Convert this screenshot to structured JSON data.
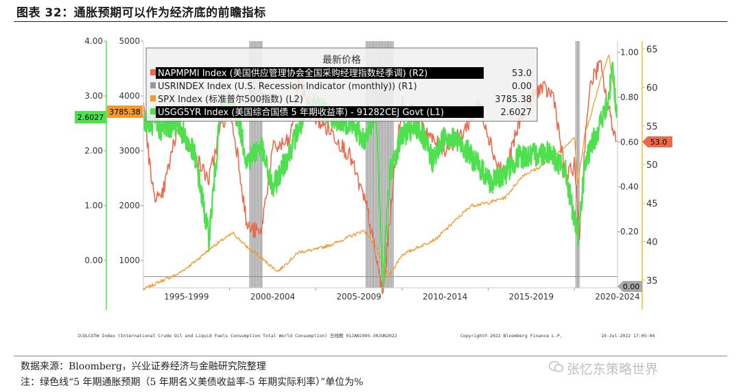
{
  "title": "图表 32：通胀预期可以作为经济底的前瞻指标",
  "legend": {
    "header": "最新价格",
    "items": [
      {
        "label": "NAPMPMI Index (美国供应管理协会全国采购经理指数经季调) (R2)",
        "value": "53.0",
        "color": "#ec6a4c",
        "highlight": true
      },
      {
        "label": "USRINDEX Index (U.S. Recession Indicator (monthly)) (R1)",
        "value": "0.00",
        "color": "#9a9a9a",
        "highlight": false
      },
      {
        "label": "SPX Index (标准普尔500指数) (L2)",
        "value": "3785.38",
        "color": "#f39a2e",
        "highlight": false
      },
      {
        "label": "USGG5YR Index (美国综合国债 5 年期收益率) - 91282CEJ Govt (L1)",
        "value": "2.6027",
        "color": "#4ee04e",
        "highlight": true
      }
    ]
  },
  "axes": {
    "L1": {
      "ticks": [
        "4.00",
        "3.00",
        "2.00",
        "1.00",
        "0.00"
      ],
      "color": "#4ee04e"
    },
    "L2": {
      "ticks": [
        "5000",
        "4000",
        "3000",
        "2000",
        "1000"
      ]
    },
    "R1": {
      "ticks": [
        "1.00",
        "0.80",
        "0.60",
        "0.40",
        "0.20"
      ]
    },
    "R2": {
      "ticks": [
        "65",
        "60",
        "55",
        "50",
        "45",
        "40",
        "35"
      ],
      "color": "#f0c020"
    },
    "x": {
      "ticks": [
        "1995-1999",
        "2000-2004",
        "2005-2009",
        "2010-2014",
        "2015-2019",
        "2020-2024"
      ]
    }
  },
  "tags": {
    "l1": {
      "text": "2.6027",
      "color": "#4ee04e"
    },
    "l2": {
      "text": "3785.38",
      "color": "#f39a2e"
    },
    "r2": {
      "text": "53.0",
      "color": "#ec6a4c"
    },
    "r1": {
      "text": "0.00",
      "color": "#9a9a9a"
    }
  },
  "bottom_info": {
    "left": "ICOLCOTW Index (International Crude Oil and Liquid Fuels Consumption Total World Consumption) 日线图 01JAN1995-30JUN2022",
    "center": "Copyright© 2022 Bloomberg Finance L.P.",
    "right": "19-Jul-2022 17:05:04"
  },
  "source": "数据来源：Bloomberg，兴业证券经济与金融研究院整理",
  "note": "注：绿色线“5 年期通胀预期（5 年期名义美债收益率-5 年期实际利率）”单位为%",
  "watermark": "张忆东策略世界",
  "chart_data": {
    "type": "line",
    "x_range": [
      "1995-01",
      "2022-06"
    ],
    "series": [
      {
        "name": "USGG5YR Index (美国综合国债 5 年期收益率) - 91282CEJ Govt",
        "axis": "L1",
        "color": "#4ee04e",
        "ylim": [
          -0.5,
          4.0
        ],
        "x": [
          1995.0,
          1996.0,
          1997.0,
          1998.0,
          1998.8,
          1999.5,
          2000.0,
          2000.5,
          2001.0,
          2001.8,
          2002.5,
          2003.5,
          2004.0,
          2005.0,
          2006.0,
          2007.0,
          2007.8,
          2008.5,
          2008.9,
          2009.3,
          2010.0,
          2011.0,
          2011.8,
          2012.5,
          2013.5,
          2014.5,
          2015.2,
          2016.0,
          2016.8,
          2017.5,
          2018.5,
          2019.5,
          2020.2,
          2020.6,
          2021.0,
          2021.5,
          2022.0,
          2022.2,
          2022.45
        ],
        "y": [
          2.6,
          2.4,
          2.5,
          1.9,
          0.4,
          2.8,
          2.9,
          2.6,
          1.8,
          2.1,
          1.3,
          2.0,
          2.4,
          2.9,
          2.6,
          2.5,
          2.2,
          2.7,
          -0.4,
          1.6,
          2.3,
          2.4,
          1.8,
          2.3,
          2.1,
          1.7,
          1.4,
          1.6,
          1.9,
          1.9,
          2.0,
          1.6,
          0.4,
          1.7,
          2.1,
          2.5,
          2.9,
          3.7,
          2.6027
        ]
      },
      {
        "name": "SPX Index (标准普尔500指数)",
        "axis": "L2",
        "color": "#f39a2e",
        "ylim": [
          500,
          5000
        ],
        "x": [
          1995.0,
          1996.0,
          1997.0,
          1998.0,
          1999.0,
          2000.2,
          2001.0,
          2002.0,
          2002.8,
          2004.0,
          2005.0,
          2006.0,
          2007.8,
          2008.5,
          2009.2,
          2010.0,
          2011.0,
          2012.0,
          2013.0,
          2014.0,
          2015.0,
          2016.0,
          2017.0,
          2018.0,
          2019.0,
          2020.0,
          2020.2,
          2020.6,
          2021.0,
          2021.5,
          2022.0,
          2022.45
        ],
        "y": [
          470,
          620,
          750,
          980,
          1250,
          1500,
          1250,
          1000,
          800,
          1150,
          1200,
          1300,
          1550,
          1250,
          700,
          1100,
          1250,
          1400,
          1700,
          2000,
          2050,
          2150,
          2550,
          2700,
          2950,
          3250,
          2400,
          3300,
          3700,
          4300,
          4750,
          3785.38
        ]
      },
      {
        "name": "NAPMPMI Index (美国供应管理协会全国采购经理指数经季调)",
        "axis": "R2",
        "color": "#ec6a4c",
        "ylim": [
          34,
          66
        ],
        "x": [
          1995.0,
          1995.5,
          1996.0,
          1997.0,
          1998.0,
          1998.8,
          1999.5,
          2000.0,
          2000.5,
          2001.0,
          2001.8,
          2002.5,
          2003.5,
          2004.0,
          2005.0,
          2006.0,
          2007.0,
          2008.0,
          2008.9,
          2009.5,
          2010.0,
          2011.0,
          2011.8,
          2012.5,
          2013.5,
          2014.5,
          2015.5,
          2016.0,
          2017.0,
          2018.0,
          2018.8,
          2019.5,
          2020.0,
          2020.3,
          2020.7,
          2021.0,
          2021.5,
          2022.0,
          2022.45
        ],
        "y": [
          58,
          47,
          45,
          55,
          51,
          48,
          55,
          57,
          51,
          42,
          41,
          52,
          53,
          61,
          56,
          54,
          51,
          44,
          33,
          48,
          58,
          56,
          53,
          52,
          54,
          58,
          50,
          49,
          57,
          60,
          59,
          48,
          50,
          41,
          56,
          61,
          63,
          57,
          53
        ]
      },
      {
        "name": "USRINDEX Index (U.S. Recession Indicator (monthly))",
        "axis": "R1",
        "color": "#9a9a9a",
        "ylim": [
          -0.05,
          1.05
        ],
        "periods": [
          [
            "2001-03",
            "2001-11"
          ],
          [
            "2007-12",
            "2009-06"
          ],
          [
            "2020-02",
            "2020-04"
          ]
        ]
      }
    ]
  }
}
